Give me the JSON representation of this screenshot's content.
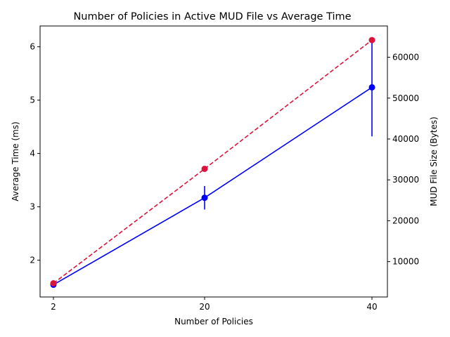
{
  "chart_data": {
    "type": "line",
    "title": "Number of Policies in Active MUD File vs Average Time",
    "xlabel": "Number of Policies",
    "ylabel_left": "Average Time (ms)",
    "ylabel_right": "MUD File Size (Bytes)",
    "x": [
      2,
      20,
      40
    ],
    "x_ticks": [
      2,
      20,
      40
    ],
    "y_left_ticks": [
      2,
      3,
      4,
      5,
      6
    ],
    "y_left_lim": [
      1.31,
      6.39
    ],
    "y_right_ticks": [
      10000,
      20000,
      30000,
      40000,
      50000,
      60000
    ],
    "y_right_lim": [
      1350,
      67650
    ],
    "grid": false,
    "legend": "none",
    "series": [
      {
        "axis": "left",
        "color": "#0000ff",
        "linestyle": "solid",
        "marker": "circle",
        "values": [
          1.54,
          3.17,
          5.24
        ],
        "error": [
          0.0,
          0.22,
          0.92
        ]
      },
      {
        "axis": "right",
        "color": "#dc143c",
        "linestyle": "dashed",
        "marker": "circle",
        "values": [
          4700,
          32700,
          64200
        ]
      }
    ]
  }
}
